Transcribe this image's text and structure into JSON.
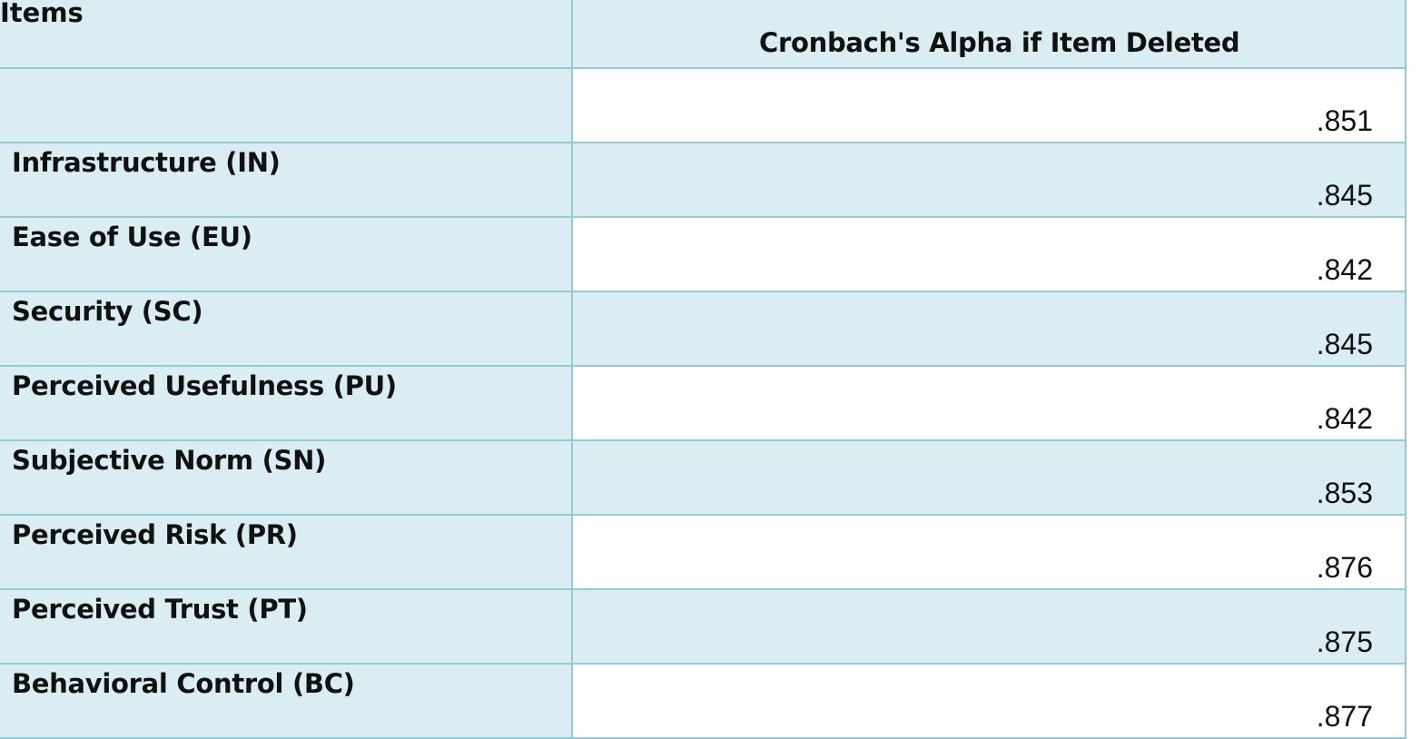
{
  "table": {
    "headers": [
      "Items",
      "Cronbach's Alpha if Item Deleted"
    ],
    "rows": [
      {
        "item": "",
        "alpha": ".851"
      },
      {
        "item": "Infrastructure (IN)",
        "alpha": ".845"
      },
      {
        "item": "Ease of Use (EU)",
        "alpha": ".842"
      },
      {
        "item": "Security (SC)",
        "alpha": ".845"
      },
      {
        "item": "Perceived Usefulness (PU)",
        "alpha": ".842"
      },
      {
        "item": "Subjective Norm (SN)",
        "alpha": ".853"
      },
      {
        "item": "Perceived Risk (PR)",
        "alpha": ".876"
      },
      {
        "item": "Perceived Trust (PT)",
        "alpha": ".875"
      },
      {
        "item": "Behavioral Control (BC)",
        "alpha": ".877"
      }
    ]
  },
  "colors": {
    "header_bg": "#daedf3",
    "border": "#93cbd6"
  }
}
